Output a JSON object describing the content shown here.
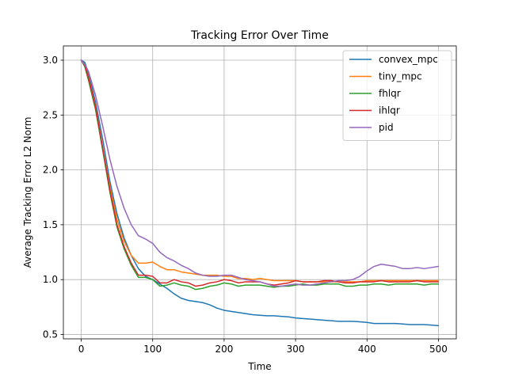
{
  "chart_data": {
    "type": "line",
    "title": "Tracking Error Over Time",
    "xlabel": "Time",
    "ylabel": "Average Tracking Error L2 Norm",
    "xlim": [
      -25,
      525
    ],
    "ylim": [
      0.46,
      3.13
    ],
    "xticks": [
      0,
      100,
      200,
      300,
      400,
      500
    ],
    "yticks": [
      0.5,
      1.0,
      1.5,
      2.0,
      2.5,
      3.0
    ],
    "xtick_labels": [
      "0",
      "100",
      "200",
      "300",
      "400",
      "500"
    ],
    "ytick_labels": [
      "0.5",
      "1.0",
      "1.5",
      "2.0",
      "2.5",
      "3.0"
    ],
    "grid": true,
    "legend_position": "top-right",
    "series": [
      {
        "name": "convex_mpc",
        "color": "#1f77b4",
        "x": [
          0,
          5,
          10,
          20,
          30,
          40,
          50,
          60,
          70,
          80,
          90,
          100,
          110,
          120,
          130,
          140,
          150,
          160,
          170,
          180,
          190,
          200,
          210,
          220,
          230,
          240,
          250,
          260,
          270,
          280,
          290,
          300,
          310,
          320,
          330,
          340,
          350,
          360,
          370,
          380,
          390,
          400,
          410,
          420,
          430,
          440,
          450,
          460,
          470,
          480,
          490,
          500
        ],
        "y": [
          3.0,
          2.98,
          2.88,
          2.62,
          2.28,
          1.9,
          1.6,
          1.38,
          1.22,
          1.1,
          1.03,
          1.0,
          0.96,
          0.92,
          0.87,
          0.83,
          0.81,
          0.8,
          0.79,
          0.77,
          0.74,
          0.72,
          0.71,
          0.7,
          0.69,
          0.68,
          0.675,
          0.67,
          0.67,
          0.665,
          0.66,
          0.65,
          0.645,
          0.64,
          0.635,
          0.63,
          0.625,
          0.62,
          0.62,
          0.62,
          0.615,
          0.61,
          0.6,
          0.6,
          0.6,
          0.6,
          0.595,
          0.59,
          0.59,
          0.59,
          0.585,
          0.58
        ]
      },
      {
        "name": "tiny_mpc",
        "color": "#ff7f0e",
        "x": [
          0,
          5,
          10,
          20,
          30,
          40,
          50,
          60,
          70,
          80,
          90,
          100,
          110,
          120,
          130,
          140,
          150,
          160,
          170,
          180,
          190,
          200,
          210,
          220,
          230,
          240,
          250,
          260,
          270,
          280,
          290,
          300,
          310,
          320,
          330,
          340,
          350,
          360,
          370,
          380,
          390,
          400,
          410,
          420,
          430,
          440,
          450,
          460,
          470,
          480,
          490,
          500
        ],
        "y": [
          3.0,
          2.95,
          2.85,
          2.58,
          2.2,
          1.85,
          1.55,
          1.35,
          1.22,
          1.15,
          1.15,
          1.16,
          1.12,
          1.09,
          1.09,
          1.07,
          1.06,
          1.05,
          1.04,
          1.04,
          1.04,
          1.03,
          1.03,
          1.01,
          1.01,
          1.0,
          1.01,
          1.0,
          0.99,
          0.99,
          0.99,
          0.99,
          0.98,
          0.98,
          0.98,
          0.98,
          0.98,
          0.98,
          0.98,
          0.98,
          0.98,
          0.99,
          0.99,
          0.99,
          0.99,
          0.99,
          0.99,
          0.99,
          0.99,
          0.99,
          0.99,
          0.99
        ]
      },
      {
        "name": "fhlqr",
        "color": "#2ca02c",
        "x": [
          0,
          5,
          10,
          20,
          30,
          40,
          50,
          60,
          70,
          80,
          90,
          100,
          110,
          120,
          130,
          140,
          150,
          160,
          170,
          180,
          190,
          200,
          210,
          220,
          230,
          240,
          250,
          260,
          270,
          280,
          290,
          300,
          310,
          320,
          330,
          340,
          350,
          360,
          370,
          380,
          390,
          400,
          410,
          420,
          430,
          440,
          450,
          460,
          470,
          480,
          490,
          500
        ],
        "y": [
          3.0,
          2.94,
          2.82,
          2.55,
          2.18,
          1.8,
          1.48,
          1.28,
          1.13,
          1.02,
          1.02,
          1.0,
          0.94,
          0.95,
          0.97,
          0.95,
          0.94,
          0.91,
          0.92,
          0.94,
          0.95,
          0.97,
          0.96,
          0.94,
          0.95,
          0.95,
          0.95,
          0.94,
          0.93,
          0.94,
          0.94,
          0.95,
          0.96,
          0.95,
          0.95,
          0.96,
          0.96,
          0.96,
          0.94,
          0.94,
          0.95,
          0.95,
          0.96,
          0.96,
          0.95,
          0.96,
          0.96,
          0.96,
          0.96,
          0.95,
          0.96,
          0.96
        ]
      },
      {
        "name": "ihlqr",
        "color": "#d62728",
        "x": [
          0,
          5,
          10,
          20,
          30,
          40,
          50,
          60,
          70,
          80,
          90,
          100,
          110,
          120,
          130,
          140,
          150,
          160,
          170,
          180,
          190,
          200,
          210,
          220,
          230,
          240,
          250,
          260,
          270,
          280,
          290,
          300,
          310,
          320,
          330,
          340,
          350,
          360,
          370,
          380,
          390,
          400,
          410,
          420,
          430,
          440,
          450,
          460,
          470,
          480,
          490,
          500
        ],
        "y": [
          3.0,
          2.95,
          2.84,
          2.57,
          2.2,
          1.82,
          1.5,
          1.3,
          1.15,
          1.04,
          1.04,
          1.03,
          0.97,
          0.97,
          1.0,
          0.98,
          0.97,
          0.94,
          0.95,
          0.97,
          0.98,
          1.0,
          0.99,
          0.97,
          0.98,
          0.98,
          0.98,
          0.96,
          0.95,
          0.96,
          0.97,
          0.99,
          0.98,
          0.98,
          0.98,
          0.99,
          0.99,
          0.98,
          0.97,
          0.97,
          0.98,
          0.98,
          0.98,
          0.99,
          0.98,
          0.98,
          0.98,
          0.98,
          0.99,
          0.98,
          0.98,
          0.98
        ]
      },
      {
        "name": "pid",
        "color": "#9467bd",
        "x": [
          0,
          5,
          10,
          20,
          30,
          40,
          50,
          60,
          70,
          80,
          90,
          100,
          110,
          120,
          130,
          140,
          150,
          160,
          170,
          180,
          190,
          200,
          210,
          220,
          230,
          240,
          250,
          260,
          270,
          280,
          290,
          300,
          310,
          320,
          330,
          340,
          350,
          360,
          370,
          380,
          390,
          400,
          410,
          420,
          430,
          440,
          450,
          460,
          470,
          480,
          490,
          500
        ],
        "y": [
          3.0,
          2.96,
          2.9,
          2.68,
          2.4,
          2.1,
          1.85,
          1.65,
          1.5,
          1.4,
          1.37,
          1.33,
          1.25,
          1.2,
          1.17,
          1.13,
          1.1,
          1.06,
          1.04,
          1.03,
          1.03,
          1.04,
          1.04,
          1.02,
          1.0,
          0.99,
          0.98,
          0.96,
          0.94,
          0.94,
          0.95,
          0.96,
          0.95,
          0.95,
          0.96,
          0.97,
          0.98,
          0.99,
          0.99,
          1.0,
          1.03,
          1.08,
          1.12,
          1.14,
          1.13,
          1.12,
          1.1,
          1.1,
          1.11,
          1.1,
          1.11,
          1.12
        ]
      }
    ]
  }
}
